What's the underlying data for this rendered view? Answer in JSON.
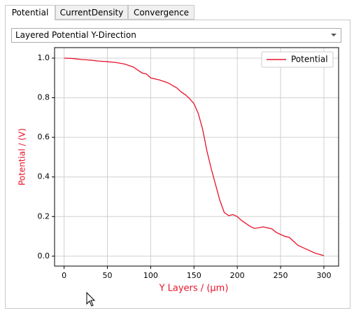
{
  "tabs": [
    "Potential",
    "CurrentDensity",
    "Convergence"
  ],
  "dropdown": "Layered Potential Y-Direction",
  "chart_data": {
    "type": "line",
    "x_label": "Y Layers / (µm)",
    "y_label": "Potential / (V)",
    "x": [
      0,
      10,
      20,
      30,
      40,
      50,
      60,
      70,
      80,
      85,
      90,
      95,
      100,
      110,
      120,
      130,
      135,
      140,
      145,
      150,
      155,
      160,
      165,
      170,
      175,
      180,
      185,
      190,
      195,
      200,
      205,
      210,
      215,
      220,
      230,
      240,
      245,
      250,
      255,
      260,
      265,
      270,
      280,
      290,
      300
    ],
    "series": [
      {
        "name": "Potential",
        "color": "#e8132b",
        "values": [
          1.0,
          0.998,
          0.993,
          0.99,
          0.985,
          0.982,
          0.978,
          0.97,
          0.955,
          0.94,
          0.925,
          0.92,
          0.9,
          0.89,
          0.875,
          0.85,
          0.83,
          0.815,
          0.795,
          0.77,
          0.72,
          0.64,
          0.53,
          0.44,
          0.36,
          0.28,
          0.22,
          0.205,
          0.21,
          0.2,
          0.18,
          0.165,
          0.15,
          0.14,
          0.148,
          0.138,
          0.12,
          0.11,
          0.1,
          0.095,
          0.075,
          0.055,
          0.035,
          0.015,
          0.003
        ]
      }
    ],
    "xlim": [
      -11,
      317
    ],
    "ylim": [
      -0.05,
      1.053
    ],
    "xticks": [
      0,
      50,
      100,
      150,
      200,
      250,
      300
    ],
    "yticks": [
      {
        "value": 0,
        "label": "0.0"
      },
      0.2,
      0.4,
      0.6,
      0.8,
      {
        "value": 1,
        "label": "1.0"
      }
    ],
    "grid": true,
    "legend": "upper right"
  }
}
